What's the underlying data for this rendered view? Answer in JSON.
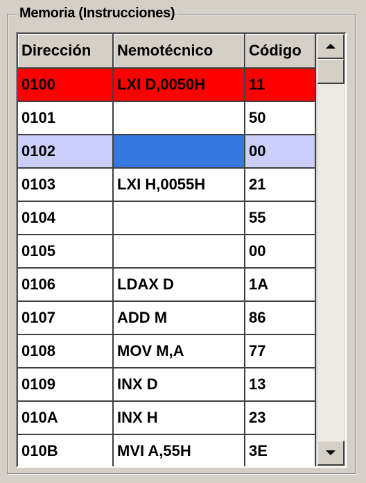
{
  "group": {
    "title": "Memoria (Instrucciones)"
  },
  "columns": [
    "Dirección",
    "Nemotécnico",
    "Código"
  ],
  "rows": [
    {
      "address": "0100",
      "mnemonic": "LXI D,0050H",
      "code": "11"
    },
    {
      "address": "0101",
      "mnemonic": "",
      "code": "50"
    },
    {
      "address": "0102",
      "mnemonic": "",
      "code": "00"
    },
    {
      "address": "0103",
      "mnemonic": "LXI H,0055H",
      "code": "21"
    },
    {
      "address": "0104",
      "mnemonic": "",
      "code": "55"
    },
    {
      "address": "0105",
      "mnemonic": "",
      "code": "00"
    },
    {
      "address": "0106",
      "mnemonic": "LDAX D",
      "code": "1A"
    },
    {
      "address": "0107",
      "mnemonic": "ADD M",
      "code": "86"
    },
    {
      "address": "0108",
      "mnemonic": "MOV M,A",
      "code": "77"
    },
    {
      "address": "0109",
      "mnemonic": "INX D",
      "code": "13"
    },
    {
      "address": "010A",
      "mnemonic": "INX H",
      "code": "23"
    },
    {
      "address": "010B",
      "mnemonic": "MVI A,55H",
      "code": "3E"
    }
  ],
  "highlight": {
    "current_row_index": 0,
    "current_color": "#ff0000",
    "selected_row_index": 2,
    "selected_color": "#cccff9",
    "focus_color": "#3478e0"
  },
  "icons": {
    "scroll_up": "arrow-up-icon",
    "scroll_down": "arrow-down-icon"
  }
}
